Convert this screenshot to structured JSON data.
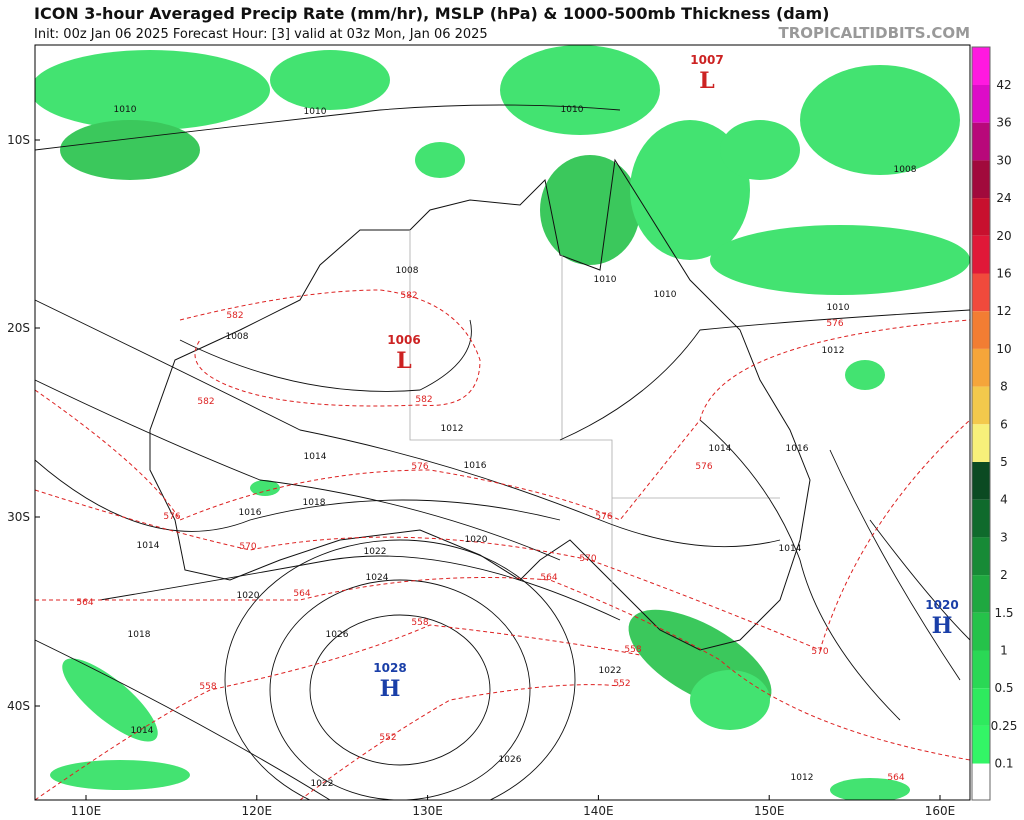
{
  "header": {
    "title": "ICON 3-hour Averaged Precip Rate (mm/hr), MSLP (hPa) & 1000-500mb Thickness (dam)",
    "subtitle": "Init: 00z Jan 06 2025   Forecast Hour: [3]   valid at 03z Mon, Jan 06 2025",
    "watermark": "TROPICALTIDBITS.COM"
  },
  "map": {
    "lat_labels": [
      "10S",
      "20S",
      "30S",
      "40S"
    ],
    "lon_labels": [
      "110E",
      "120E",
      "130E",
      "140E",
      "150E",
      "160E"
    ],
    "centers": [
      {
        "value": "1006",
        "label": "L"
      },
      {
        "value": "1007",
        "label": "L"
      },
      {
        "value": "1028",
        "label": "H"
      },
      {
        "value": "1020",
        "label": "H"
      }
    ],
    "isobar_labels": [
      "1010",
      "1010",
      "1010",
      "1008",
      "1008",
      "1008",
      "1010",
      "1010",
      "1010",
      "1012",
      "1012",
      "1014",
      "1014",
      "1014",
      "1014",
      "1016",
      "1016",
      "1016",
      "1018",
      "1018",
      "1020",
      "1020",
      "1022",
      "1022",
      "1022",
      "1024",
      "1026",
      "1026",
      "1014",
      "1012"
    ],
    "thickness_labels": [
      "582",
      "582",
      "582",
      "582",
      "576",
      "576",
      "576",
      "576",
      "576",
      "570",
      "570",
      "570",
      "564",
      "564",
      "564",
      "564",
      "558",
      "558",
      "558",
      "552",
      "552"
    ]
  },
  "colorbar": {
    "ticks": [
      42,
      36,
      30,
      24,
      20,
      16,
      12,
      10,
      8,
      6,
      5,
      4,
      3,
      2,
      1.5,
      1,
      0.5,
      0.25,
      0.1
    ],
    "colors": [
      "#ff19e0",
      "#dd0cc8",
      "#b8087a",
      "#a10a3c",
      "#c8102e",
      "#e01838",
      "#f04a3c",
      "#f27d33",
      "#f5a53a",
      "#f3c94c",
      "#f7f07a",
      "#0b4a22",
      "#0f6a2c",
      "#178a36",
      "#1fa840",
      "#25c24a",
      "#2ad855",
      "#2eea5e",
      "#33f566",
      "#ffffff"
    ]
  }
}
